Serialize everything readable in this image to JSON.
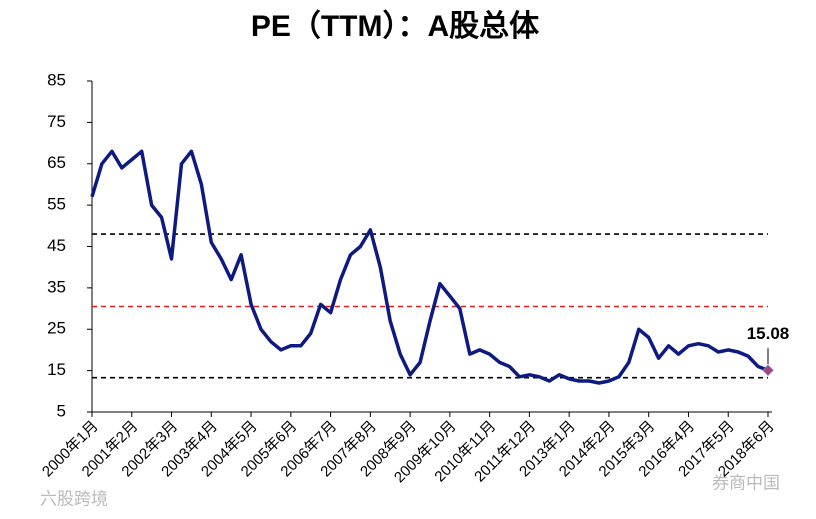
{
  "chart_data": {
    "type": "line",
    "title": "PE（TTM）：A股总体",
    "categories": [
      "2000年1月",
      null,
      null,
      null,
      "2001年2月",
      null,
      null,
      null,
      "2002年3月",
      null,
      null,
      null,
      "2003年4月",
      null,
      null,
      null,
      "2004年5月",
      null,
      null,
      null,
      "2005年6月",
      null,
      null,
      null,
      "2006年7月",
      null,
      null,
      null,
      "2007年8月",
      null,
      null,
      null,
      "2008年9月",
      null,
      null,
      null,
      "2009年10月",
      null,
      null,
      null,
      "2010年11月",
      null,
      null,
      null,
      "2011年12月",
      null,
      null,
      null,
      "2013年1月",
      null,
      null,
      null,
      "2014年2月",
      null,
      null,
      null,
      "2015年3月",
      null,
      null,
      null,
      "2016年4月",
      null,
      null,
      null,
      "2017年5月",
      null,
      null,
      null,
      "2018年6月"
    ],
    "series": [
      {
        "color": "#0d1a80",
        "values": [
          57,
          65,
          68,
          64,
          66,
          68,
          55,
          52,
          42,
          65,
          68,
          60,
          46,
          42,
          37,
          43,
          31,
          25,
          22,
          20,
          21,
          21,
          24,
          31,
          29,
          37,
          43,
          45,
          49,
          40,
          27,
          19,
          14,
          17,
          27,
          36,
          33,
          30,
          19,
          20,
          19,
          17,
          16,
          13.5,
          14,
          13.5,
          12.5,
          14,
          13,
          12.5,
          12.5,
          12,
          12.5,
          13.5,
          17,
          25,
          23,
          18,
          21,
          19,
          21,
          21.5,
          21,
          19.5,
          20,
          19.5,
          18.5,
          16,
          15.08
        ]
      }
    ],
    "ylim": [
      5,
      85
    ],
    "yticks": [
      5,
      15,
      25,
      35,
      45,
      55,
      65,
      75,
      85
    ],
    "reference_lines": [
      {
        "value": 48,
        "color": "#000000"
      },
      {
        "value": 30.5,
        "color": "#e02020"
      },
      {
        "value": 13.3,
        "color": "#000000"
      }
    ],
    "end_label_color": "#b04070",
    "watermarks": [
      "六股跨境",
      "券商中国"
    ]
  }
}
